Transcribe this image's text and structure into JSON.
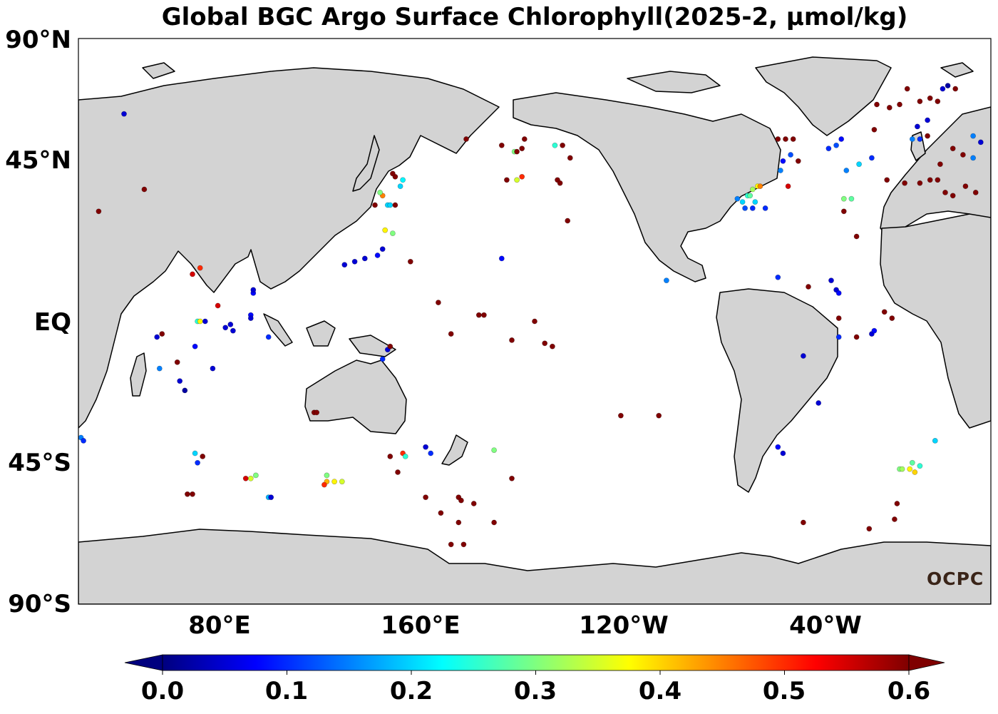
{
  "title": "Global BGC Argo Surface Chlorophyll(2025-2, μmol/kg)",
  "logo_text": "OCPC",
  "lat_labels": [
    "90°N",
    "45°N",
    "EQ",
    "45°S",
    "90°S"
  ],
  "lon_labels": [
    "80°E",
    "160°E",
    "120°W",
    "40°W"
  ],
  "colorbar": {
    "ticks": [
      "0.0",
      "0.1",
      "0.2",
      "0.3",
      "0.4",
      "0.5",
      "0.6"
    ],
    "min": 0.0,
    "max": 0.6,
    "colormap": "jet",
    "extend": "both"
  },
  "colors": {
    "land": "#d3d3d3",
    "ocean": "#ffffff",
    "coast": "#000000"
  },
  "map_extent": {
    "lon_min": 20,
    "lon_max": 380,
    "lat_min": -90,
    "lat_max": 90
  },
  "chart_data": {
    "type": "scatter",
    "title": "Global BGC Argo Surface Chlorophyll(2025-2, μmol/kg)",
    "xlabel": "",
    "ylabel": "",
    "points": [
      {
        "lon": 38,
        "lat": 66,
        "v": 0.05
      },
      {
        "lon": 46,
        "lat": 42,
        "v": 0.6
      },
      {
        "lon": 28,
        "lat": 35,
        "v": 0.6
      },
      {
        "lon": 65,
        "lat": 15,
        "v": 0.55
      },
      {
        "lon": 68,
        "lat": 17,
        "v": 0.5
      },
      {
        "lon": 53,
        "lat": -4,
        "v": 0.6
      },
      {
        "lon": 51,
        "lat": -5,
        "v": 0.05
      },
      {
        "lon": 52,
        "lat": -15,
        "v": 0.15
      },
      {
        "lon": 59,
        "lat": -13,
        "v": 0.6
      },
      {
        "lon": 60,
        "lat": -19,
        "v": 0.05
      },
      {
        "lon": 62,
        "lat": -22,
        "v": 0.02
      },
      {
        "lon": 67,
        "lat": 0,
        "v": 0.25
      },
      {
        "lon": 68,
        "lat": 0,
        "v": 0.38
      },
      {
        "lon": 70,
        "lat": 0,
        "v": 0.05
      },
      {
        "lon": 66,
        "lat": -8,
        "v": 0.08
      },
      {
        "lon": 75,
        "lat": 5,
        "v": 0.55
      },
      {
        "lon": 78,
        "lat": -2,
        "v": 0.05
      },
      {
        "lon": 80,
        "lat": -1,
        "v": 0.05
      },
      {
        "lon": 81,
        "lat": -3,
        "v": 0.05
      },
      {
        "lon": 73,
        "lat": -15,
        "v": 0.05
      },
      {
        "lon": 89,
        "lat": 9,
        "v": 0.08
      },
      {
        "lon": 89,
        "lat": 10,
        "v": 0.05
      },
      {
        "lon": 88,
        "lat": 2,
        "v": 0.08
      },
      {
        "lon": 88,
        "lat": 1,
        "v": 0.05
      },
      {
        "lon": 95,
        "lat": -5,
        "v": 0.1
      },
      {
        "lon": 21,
        "lat": -37,
        "v": 0.15
      },
      {
        "lon": 22,
        "lat": -38,
        "v": 0.1
      },
      {
        "lon": 66,
        "lat": -42,
        "v": 0.2
      },
      {
        "lon": 67,
        "lat": -45,
        "v": 0.1
      },
      {
        "lon": 69,
        "lat": -43,
        "v": 0.6
      },
      {
        "lon": 63,
        "lat": -55,
        "v": 0.6
      },
      {
        "lon": 65,
        "lat": -55,
        "v": 0.6
      },
      {
        "lon": 88,
        "lat": -50,
        "v": 0.35
      },
      {
        "lon": 90,
        "lat": -49,
        "v": 0.3
      },
      {
        "lon": 86,
        "lat": -50,
        "v": 0.55
      },
      {
        "lon": 95,
        "lat": -56,
        "v": 0.18
      },
      {
        "lon": 96,
        "lat": -56,
        "v": 0.05
      },
      {
        "lon": 113,
        "lat": -29,
        "v": 0.6
      },
      {
        "lon": 114,
        "lat": -29,
        "v": 0.6
      },
      {
        "lon": 118,
        "lat": -49,
        "v": 0.3
      },
      {
        "lon": 118,
        "lat": -51,
        "v": 0.42
      },
      {
        "lon": 117,
        "lat": -52,
        "v": 0.5
      },
      {
        "lon": 121,
        "lat": -51,
        "v": 0.38
      },
      {
        "lon": 124,
        "lat": -51,
        "v": 0.35
      },
      {
        "lon": 141,
        "lat": 29,
        "v": 0.38
      },
      {
        "lon": 144,
        "lat": 28,
        "v": 0.3
      },
      {
        "lon": 137,
        "lat": 37,
        "v": 0.6
      },
      {
        "lon": 142,
        "lat": 37,
        "v": 0.2
      },
      {
        "lon": 143,
        "lat": 37,
        "v": 0.2
      },
      {
        "lon": 147,
        "lat": 43,
        "v": 0.2
      },
      {
        "lon": 148,
        "lat": 45,
        "v": 0.22
      },
      {
        "lon": 145,
        "lat": 46,
        "v": 0.6
      },
      {
        "lon": 140,
        "lat": 40,
        "v": 0.45
      },
      {
        "lon": 139,
        "lat": 41,
        "v": 0.3
      },
      {
        "lon": 145,
        "lat": 37,
        "v": 0.6
      },
      {
        "lon": 144,
        "lat": 47,
        "v": 0.6
      },
      {
        "lon": 125,
        "lat": 18,
        "v": 0.05
      },
      {
        "lon": 129,
        "lat": 19,
        "v": 0.05
      },
      {
        "lon": 133,
        "lat": 20,
        "v": 0.05
      },
      {
        "lon": 138,
        "lat": 21,
        "v": 0.08
      },
      {
        "lon": 140,
        "lat": 23,
        "v": 0.05
      },
      {
        "lon": 151,
        "lat": 19,
        "v": 0.6
      },
      {
        "lon": 142,
        "lat": -9,
        "v": 0.05
      },
      {
        "lon": 143,
        "lat": -8,
        "v": 0.6
      },
      {
        "lon": 140,
        "lat": -12,
        "v": 0.1
      },
      {
        "lon": 143,
        "lat": -43,
        "v": 0.6
      },
      {
        "lon": 148,
        "lat": -42,
        "v": 0.5
      },
      {
        "lon": 149,
        "lat": -43,
        "v": 0.25
      },
      {
        "lon": 157,
        "lat": -40,
        "v": 0.05
      },
      {
        "lon": 159,
        "lat": -42,
        "v": 0.1
      },
      {
        "lon": 146,
        "lat": -48,
        "v": 0.6
      },
      {
        "lon": 157,
        "lat": -56,
        "v": 0.6
      },
      {
        "lon": 162,
        "lat": 6,
        "v": 0.6
      },
      {
        "lon": 167,
        "lat": -4,
        "v": 0.6
      },
      {
        "lon": 163,
        "lat": -61,
        "v": 0.6
      },
      {
        "lon": 170,
        "lat": -56,
        "v": 0.6
      },
      {
        "lon": 171,
        "lat": -57,
        "v": 0.6
      },
      {
        "lon": 167,
        "lat": -71,
        "v": 0.6
      },
      {
        "lon": 170,
        "lat": -64,
        "v": 0.6
      },
      {
        "lon": 172,
        "lat": -71,
        "v": 0.6
      },
      {
        "lon": 173,
        "lat": 58,
        "v": 0.6
      },
      {
        "lon": 178,
        "lat": 2,
        "v": 0.6
      },
      {
        "lon": 180,
        "lat": 2,
        "v": 0.6
      },
      {
        "lon": 184,
        "lat": -41,
        "v": 0.3
      },
      {
        "lon": 187,
        "lat": 20,
        "v": 0.08
      },
      {
        "lon": 189,
        "lat": 45,
        "v": 0.6
      },
      {
        "lon": 187,
        "lat": 56,
        "v": 0.6
      },
      {
        "lon": 192,
        "lat": 54,
        "v": 0.3
      },
      {
        "lon": 193,
        "lat": 54,
        "v": 0.6
      },
      {
        "lon": 196,
        "lat": 58,
        "v": 0.6
      },
      {
        "lon": 195,
        "lat": 55,
        "v": 0.6
      },
      {
        "lon": 193,
        "lat": 45,
        "v": 0.35
      },
      {
        "lon": 195,
        "lat": 46,
        "v": 0.5
      },
      {
        "lon": 191,
        "lat": -6,
        "v": 0.6
      },
      {
        "lon": 200,
        "lat": 0,
        "v": 0.6
      },
      {
        "lon": 191,
        "lat": -50,
        "v": 0.6
      },
      {
        "lon": 184,
        "lat": -64,
        "v": 0.6
      },
      {
        "lon": 176,
        "lat": -58,
        "v": 0.6
      },
      {
        "lon": 208,
        "lat": 56,
        "v": 0.25
      },
      {
        "lon": 211,
        "lat": 56,
        "v": 0.6
      },
      {
        "lon": 214,
        "lat": 52,
        "v": 0.6
      },
      {
        "lon": 209,
        "lat": 45,
        "v": 0.6
      },
      {
        "lon": 210,
        "lat": 44,
        "v": 0.6
      },
      {
        "lon": 213,
        "lat": 32,
        "v": 0.6
      },
      {
        "lon": 204,
        "lat": -7,
        "v": 0.6
      },
      {
        "lon": 207,
        "lat": -8,
        "v": 0.6
      },
      {
        "lon": 234,
        "lat": -30,
        "v": 0.6
      },
      {
        "lon": 249,
        "lat": -30,
        "v": 0.6
      },
      {
        "lon": 252,
        "lat": 13,
        "v": 0.15
      },
      {
        "lon": 280,
        "lat": 39,
        "v": 0.15
      },
      {
        "lon": 282,
        "lat": 38,
        "v": 0.2
      },
      {
        "lon": 284,
        "lat": 40,
        "v": 0.25
      },
      {
        "lon": 285,
        "lat": 40,
        "v": 0.28
      },
      {
        "lon": 286,
        "lat": 42,
        "v": 0.32
      },
      {
        "lon": 288,
        "lat": 43,
        "v": 0.38
      },
      {
        "lon": 289,
        "lat": 43,
        "v": 0.45
      },
      {
        "lon": 283,
        "lat": 36,
        "v": 0.12
      },
      {
        "lon": 286,
        "lat": 36,
        "v": 0.1
      },
      {
        "lon": 291,
        "lat": 36,
        "v": 0.1
      },
      {
        "lon": 287,
        "lat": 38,
        "v": 0.2
      },
      {
        "lon": 298,
        "lat": 51,
        "v": 0.08
      },
      {
        "lon": 301,
        "lat": 53,
        "v": 0.12
      },
      {
        "lon": 304,
        "lat": 51,
        "v": 0.6
      },
      {
        "lon": 296,
        "lat": 58,
        "v": 0.6
      },
      {
        "lon": 299,
        "lat": 58,
        "v": 0.6
      },
      {
        "lon": 302,
        "lat": 58,
        "v": 0.6
      },
      {
        "lon": 297,
        "lat": 48,
        "v": 0.15
      },
      {
        "lon": 300,
        "lat": 43,
        "v": 0.55
      },
      {
        "lon": 296,
        "lat": 14,
        "v": 0.1
      },
      {
        "lon": 316,
        "lat": 55,
        "v": 0.1
      },
      {
        "lon": 319,
        "lat": 56,
        "v": 0.12
      },
      {
        "lon": 321,
        "lat": 58,
        "v": 0.08
      },
      {
        "lon": 323,
        "lat": 48,
        "v": 0.15
      },
      {
        "lon": 322,
        "lat": 39,
        "v": 0.3
      },
      {
        "lon": 325,
        "lat": 39,
        "v": 0.28
      },
      {
        "lon": 328,
        "lat": 50,
        "v": 0.2
      },
      {
        "lon": 333,
        "lat": 52,
        "v": 0.1
      },
      {
        "lon": 339,
        "lat": 45,
        "v": 0.6
      },
      {
        "lon": 327,
        "lat": 27,
        "v": 0.6
      },
      {
        "lon": 322,
        "lat": 35,
        "v": 0.6
      },
      {
        "lon": 308,
        "lat": 11,
        "v": 0.6
      },
      {
        "lon": 317,
        "lat": 13,
        "v": 0.05
      },
      {
        "lon": 319,
        "lat": 10,
        "v": 0.05
      },
      {
        "lon": 320,
        "lat": 9,
        "v": 0.08
      },
      {
        "lon": 320,
        "lat": 1,
        "v": 0.6
      },
      {
        "lon": 320,
        "lat": -5,
        "v": 0.1
      },
      {
        "lon": 327,
        "lat": -5,
        "v": 0.6
      },
      {
        "lon": 333,
        "lat": -4,
        "v": 0.05
      },
      {
        "lon": 334,
        "lat": -3,
        "v": 0.08
      },
      {
        "lon": 338,
        "lat": 3,
        "v": 0.6
      },
      {
        "lon": 341,
        "lat": 1,
        "v": 0.6
      },
      {
        "lon": 306,
        "lat": -11,
        "v": 0.05
      },
      {
        "lon": 296,
        "lat": -40,
        "v": 0.08
      },
      {
        "lon": 298,
        "lat": -42,
        "v": 0.05
      },
      {
        "lon": 306,
        "lat": -64,
        "v": 0.6
      },
      {
        "lon": 312,
        "lat": -26,
        "v": 0.05
      },
      {
        "lon": 332,
        "lat": -66,
        "v": 0.6
      },
      {
        "lon": 343,
        "lat": -58,
        "v": 0.6
      },
      {
        "lon": 342,
        "lat": -63,
        "v": 0.6
      },
      {
        "lon": 344,
        "lat": -47,
        "v": 0.3
      },
      {
        "lon": 345,
        "lat": -47,
        "v": 0.32
      },
      {
        "lon": 348,
        "lat": -47,
        "v": 0.38
      },
      {
        "lon": 349,
        "lat": -45,
        "v": 0.28
      },
      {
        "lon": 352,
        "lat": -46,
        "v": 0.25
      },
      {
        "lon": 350,
        "lat": -48,
        "v": 0.4
      },
      {
        "lon": 358,
        "lat": -38,
        "v": 0.2
      },
      {
        "lon": 335,
        "lat": 69,
        "v": 0.6
      },
      {
        "lon": 340,
        "lat": 68,
        "v": 0.6
      },
      {
        "lon": 344,
        "lat": 69,
        "v": 0.6
      },
      {
        "lon": 352,
        "lat": 70,
        "v": 0.6
      },
      {
        "lon": 356,
        "lat": 71,
        "v": 0.6
      },
      {
        "lon": 347,
        "lat": 74,
        "v": 0.6
      },
      {
        "lon": 334,
        "lat": 61,
        "v": 0.6
      },
      {
        "lon": 351,
        "lat": 62,
        "v": 0.05
      },
      {
        "lon": 355,
        "lat": 64,
        "v": 0.05
      },
      {
        "lon": 349,
        "lat": 58,
        "v": 0.15
      },
      {
        "lon": 352,
        "lat": 58,
        "v": 0.1
      },
      {
        "lon": 355,
        "lat": 59,
        "v": 0.6
      },
      {
        "lon": 346,
        "lat": 44,
        "v": 0.6
      },
      {
        "lon": 352,
        "lat": 44,
        "v": 0.6
      },
      {
        "lon": 356,
        "lat": 45,
        "v": 0.6
      },
      {
        "lon": 359,
        "lat": 45,
        "v": 0.6
      },
      {
        "lon": 362,
        "lat": 41,
        "v": 0.6
      },
      {
        "lon": 365,
        "lat": 40,
        "v": 0.6
      },
      {
        "lon": 370,
        "lat": 43,
        "v": 0.6
      },
      {
        "lon": 374,
        "lat": 41,
        "v": 0.6
      },
      {
        "lon": 360,
        "lat": 50,
        "v": 0.6
      },
      {
        "lon": 365,
        "lat": 55,
        "v": 0.6
      },
      {
        "lon": 373,
        "lat": 59,
        "v": 0.15
      },
      {
        "lon": 376,
        "lat": 57,
        "v": 0.05
      },
      {
        "lon": 373,
        "lat": 52,
        "v": 0.15
      },
      {
        "lon": 369,
        "lat": 53,
        "v": 0.6
      },
      {
        "lon": 361,
        "lat": 74,
        "v": 0.05
      },
      {
        "lon": 363,
        "lat": 75,
        "v": 0.02
      },
      {
        "lon": 366,
        "lat": 74,
        "v": 0.6
      },
      {
        "lon": 359,
        "lat": 70,
        "v": 0.6
      }
    ]
  }
}
